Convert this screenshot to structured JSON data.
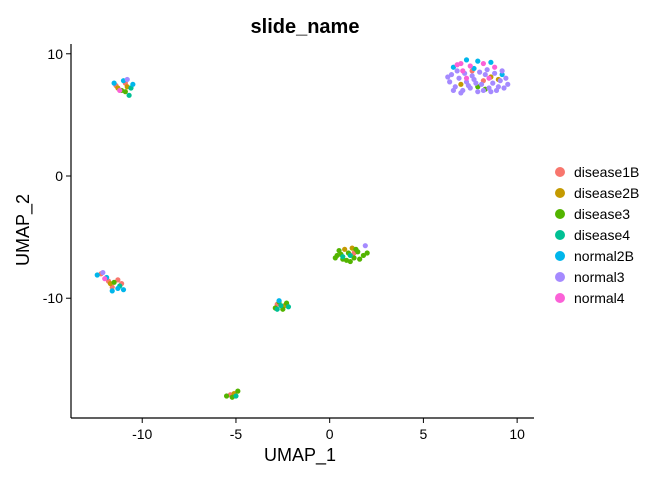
{
  "chart_data": {
    "type": "scatter",
    "title": "slide_name",
    "xlabel": "UMAP_1",
    "ylabel": "UMAP_2",
    "xlim": [
      -13.8,
      10.9
    ],
    "ylim": [
      -19.8,
      10.8
    ],
    "x_ticks": [
      -10,
      -5,
      0,
      5,
      10
    ],
    "x_tick_labels": [
      "-10",
      "-5",
      "0",
      "5",
      "10"
    ],
    "y_ticks": [
      10,
      0,
      -10
    ],
    "y_tick_labels": [
      "10",
      "0",
      "-10"
    ],
    "grid": false,
    "legend_position": "right",
    "series": [
      {
        "name": "disease1B",
        "color": "#F8766D",
        "points": [
          [
            -11.4,
            7.4
          ],
          [
            -10.9,
            7.6
          ],
          [
            -12.2,
            -8.0
          ],
          [
            -11.8,
            -8.6
          ],
          [
            -11.3,
            -8.5
          ],
          [
            -11.6,
            -9.1
          ],
          [
            -11.1,
            -8.8
          ],
          [
            8.2,
            7.8
          ],
          [
            7.6,
            8.6
          ],
          [
            -2.8,
            -10.5
          ],
          [
            -5.3,
            -17.9
          ],
          [
            1.3,
            -6.3
          ]
        ]
      },
      {
        "name": "disease2B",
        "color": "#C49A00",
        "points": [
          [
            -11.3,
            7.2
          ],
          [
            -10.8,
            7.3
          ],
          [
            0.8,
            -6.0
          ],
          [
            1.2,
            -5.9
          ],
          [
            7.0,
            7.5
          ],
          [
            8.6,
            8.1
          ],
          [
            -11.7,
            -8.8
          ],
          [
            -2.4,
            -10.6
          ],
          [
            9.0,
            7.9
          ],
          [
            -5.1,
            -17.8
          ]
        ]
      },
      {
        "name": "disease3",
        "color": "#53B400",
        "points": [
          [
            -10.9,
            6.9
          ],
          [
            -11.1,
            7.0
          ],
          [
            0.3,
            -6.7
          ],
          [
            0.6,
            -6.4
          ],
          [
            0.9,
            -6.9
          ],
          [
            1.0,
            -6.3
          ],
          [
            1.3,
            -6.7
          ],
          [
            1.5,
            -6.2
          ],
          [
            1.8,
            -6.5
          ],
          [
            0.5,
            -6.1
          ],
          [
            0.7,
            -6.8
          ],
          [
            1.1,
            -7.0
          ],
          [
            1.6,
            -6.8
          ],
          [
            2.0,
            -6.3
          ],
          [
            0.4,
            -6.5
          ],
          [
            1.4,
            -6.0
          ],
          [
            -2.7,
            -10.3
          ],
          [
            -2.9,
            -10.8
          ],
          [
            -2.5,
            -10.9
          ],
          [
            -2.3,
            -10.4
          ],
          [
            -5.2,
            -18.1
          ],
          [
            -5.5,
            -18.0
          ],
          [
            -4.9,
            -17.6
          ],
          [
            8.3,
            7.1
          ],
          [
            7.9,
            7.3
          ],
          [
            -11.5,
            -8.7
          ]
        ]
      },
      {
        "name": "disease4",
        "color": "#00C094",
        "points": [
          [
            -10.7,
            6.6
          ],
          [
            -10.6,
            7.2
          ],
          [
            -2.6,
            -10.6
          ],
          [
            -2.8,
            -10.9
          ],
          [
            -2.2,
            -10.7
          ],
          [
            -5.0,
            -18.0
          ],
          [
            0.7,
            -6.6
          ],
          [
            1.1,
            -6.5
          ],
          [
            -11.2,
            -9.0
          ]
        ]
      },
      {
        "name": "normal2B",
        "color": "#00B6EB",
        "points": [
          [
            -11.0,
            7.8
          ],
          [
            -11.5,
            7.6
          ],
          [
            -10.5,
            7.5
          ],
          [
            -12.4,
            -8.1
          ],
          [
            -11.9,
            -8.3
          ],
          [
            -11.3,
            -9.2
          ],
          [
            -11.0,
            -9.3
          ],
          [
            -11.6,
            -9.4
          ],
          [
            7.3,
            9.5
          ],
          [
            7.9,
            9.4
          ],
          [
            8.6,
            9.3
          ],
          [
            7.7,
            8.8
          ],
          [
            9.2,
            8.3
          ],
          [
            6.6,
            8.9
          ],
          [
            -2.7,
            -10.2
          ]
        ]
      },
      {
        "name": "normal3",
        "color": "#A58AFF",
        "points": [
          [
            6.4,
            7.7
          ],
          [
            6.7,
            7.3
          ],
          [
            6.9,
            8.0
          ],
          [
            7.1,
            7.0
          ],
          [
            7.3,
            7.7
          ],
          [
            7.5,
            7.2
          ],
          [
            7.7,
            7.9
          ],
          [
            7.9,
            6.9
          ],
          [
            8.1,
            7.5
          ],
          [
            8.3,
            8.3
          ],
          [
            8.5,
            7.2
          ],
          [
            8.7,
            7.6
          ],
          [
            8.9,
            7.0
          ],
          [
            9.1,
            7.8
          ],
          [
            9.3,
            7.2
          ],
          [
            9.5,
            7.5
          ],
          [
            6.5,
            8.3
          ],
          [
            6.8,
            8.6
          ],
          [
            7.2,
            8.4
          ],
          [
            7.6,
            8.2
          ],
          [
            8.0,
            8.5
          ],
          [
            8.4,
            8.7
          ],
          [
            8.8,
            8.4
          ],
          [
            9.2,
            8.6
          ],
          [
            6.6,
            7.0
          ],
          [
            7.0,
            6.8
          ],
          [
            7.4,
            7.4
          ],
          [
            7.8,
            7.6
          ],
          [
            8.2,
            7.0
          ],
          [
            8.6,
            6.9
          ],
          [
            9.0,
            7.3
          ],
          [
            6.3,
            8.1
          ],
          [
            9.4,
            8.0
          ],
          [
            -12.1,
            -7.9
          ],
          [
            -10.8,
            7.9
          ],
          [
            1.9,
            -5.7
          ]
        ]
      },
      {
        "name": "normal4",
        "color": "#FB61D7",
        "points": [
          [
            7.0,
            9.2
          ],
          [
            7.5,
            9.0
          ],
          [
            8.2,
            9.2
          ],
          [
            8.8,
            8.9
          ],
          [
            7.1,
            8.6
          ],
          [
            6.8,
            9.1
          ],
          [
            8.5,
            8.0
          ],
          [
            -11.2,
            7.0
          ],
          [
            -12.0,
            -8.4
          ],
          [
            7.3,
            8.0
          ]
        ]
      }
    ]
  }
}
